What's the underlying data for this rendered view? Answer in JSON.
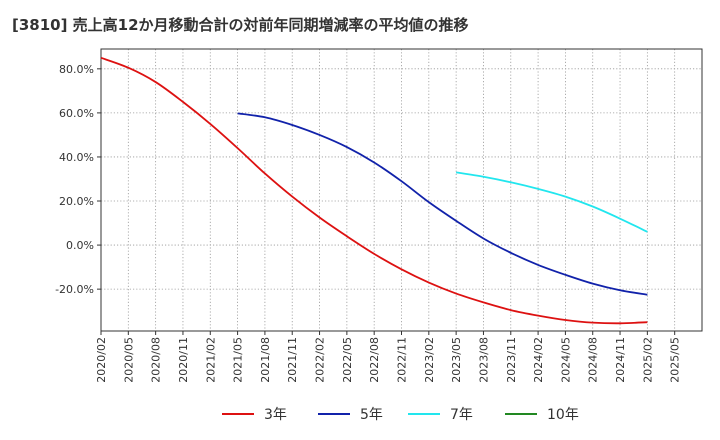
{
  "chart_data": {
    "type": "line",
    "title": "[3810]  売上高12か月移動合計の対前年同期増減率の平均値の推移",
    "xlabel": "",
    "ylabel": "",
    "ylim": [
      -39,
      89
    ],
    "y_ticks": [
      80,
      60,
      40,
      20,
      0,
      -20
    ],
    "y_tick_labels": [
      "80.0%",
      "60.0%",
      "40.0%",
      "20.0%",
      "0.0%",
      "-20.0%"
    ],
    "x_tick_labels": [
      "2020/02",
      "2020/05",
      "2020/08",
      "2020/11",
      "2021/02",
      "2021/05",
      "2021/08",
      "2021/11",
      "2022/02",
      "2022/05",
      "2022/08",
      "2022/11",
      "2023/02",
      "2023/05",
      "2023/08",
      "2023/11",
      "2024/02",
      "2024/05",
      "2024/08",
      "2024/11",
      "2025/02",
      "2025/05"
    ],
    "grid": true,
    "legend_position": "bottom",
    "series": [
      {
        "name": "3年",
        "color": "#dd1111",
        "points": [
          [
            "2020/02",
            85.0
          ],
          [
            "2020/05",
            80.5
          ],
          [
            "2020/08",
            74.0
          ],
          [
            "2020/11",
            65.0
          ],
          [
            "2021/02",
            55.0
          ],
          [
            "2021/05",
            44.0
          ],
          [
            "2021/08",
            32.5
          ],
          [
            "2021/11",
            22.0
          ],
          [
            "2022/02",
            12.5
          ],
          [
            "2022/05",
            4.0
          ],
          [
            "2022/08",
            -4.0
          ],
          [
            "2022/11",
            -11.0
          ],
          [
            "2023/02",
            -17.0
          ],
          [
            "2023/05",
            -22.0
          ],
          [
            "2023/08",
            -26.0
          ],
          [
            "2023/11",
            -29.5
          ],
          [
            "2024/02",
            -32.0
          ],
          [
            "2024/05",
            -34.0
          ],
          [
            "2024/08",
            -35.2
          ],
          [
            "2024/11",
            -35.5
          ],
          [
            "2025/02",
            -35.0
          ]
        ]
      },
      {
        "name": "5年",
        "color": "#1122aa",
        "points": [
          [
            "2021/05",
            59.8
          ],
          [
            "2021/08",
            58.0
          ],
          [
            "2021/11",
            54.5
          ],
          [
            "2022/02",
            50.0
          ],
          [
            "2022/05",
            44.5
          ],
          [
            "2022/08",
            37.5
          ],
          [
            "2022/11",
            29.0
          ],
          [
            "2023/02",
            19.5
          ],
          [
            "2023/05",
            11.0
          ],
          [
            "2023/08",
            3.0
          ],
          [
            "2023/11",
            -3.5
          ],
          [
            "2024/02",
            -9.0
          ],
          [
            "2024/05",
            -13.5
          ],
          [
            "2024/08",
            -17.5
          ],
          [
            "2024/11",
            -20.5
          ],
          [
            "2025/02",
            -22.5
          ]
        ]
      },
      {
        "name": "7年",
        "color": "#22e6ee",
        "points": [
          [
            "2023/05",
            33.0
          ],
          [
            "2023/08",
            31.0
          ],
          [
            "2023/11",
            28.5
          ],
          [
            "2024/02",
            25.5
          ],
          [
            "2024/05",
            22.0
          ],
          [
            "2024/08",
            17.5
          ],
          [
            "2024/11",
            12.0
          ],
          [
            "2025/02",
            6.0
          ]
        ]
      },
      {
        "name": "10年",
        "color": "#228822",
        "points": []
      }
    ]
  }
}
